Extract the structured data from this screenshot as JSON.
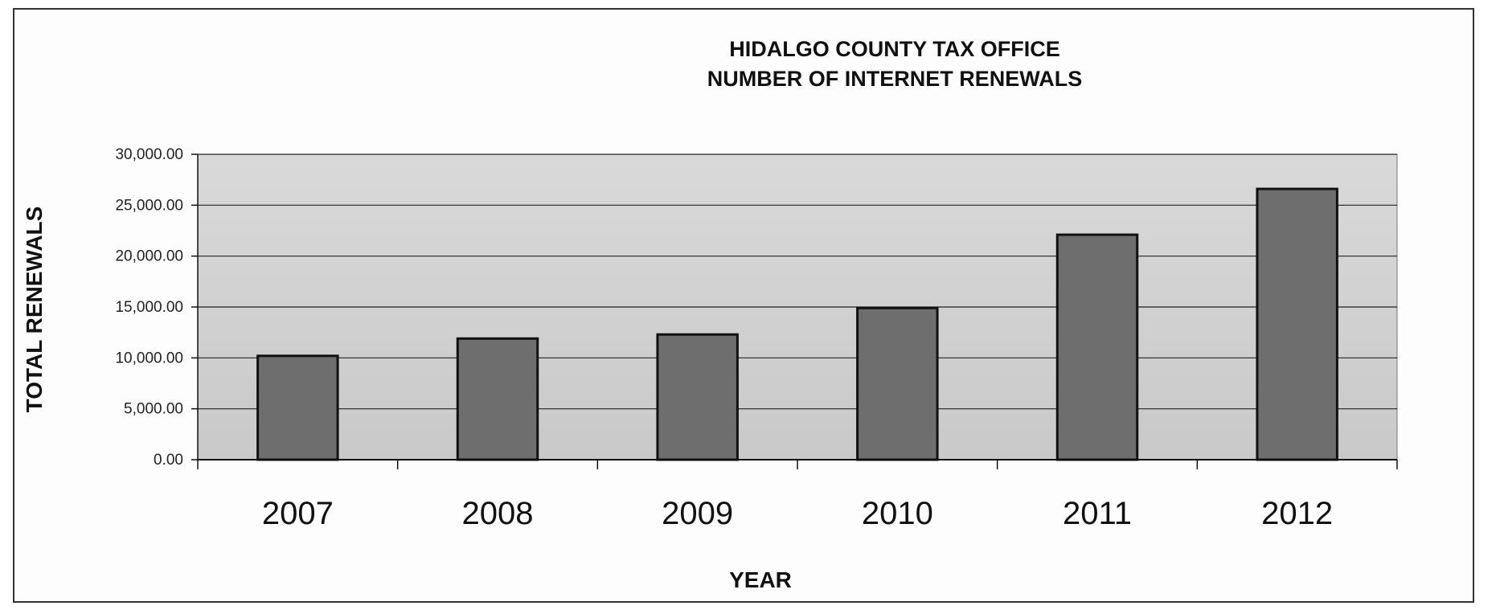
{
  "chart_data": {
    "type": "bar",
    "title": "HIDALGO COUNTY TAX OFFICE",
    "subtitle": "NUMBER OF INTERNET RENEWALS",
    "xlabel": "YEAR",
    "ylabel": "TOTAL RENEWALS",
    "categories": [
      "2007",
      "2008",
      "2009",
      "2010",
      "2011",
      "2012"
    ],
    "values": [
      10200,
      11900,
      12300,
      14900,
      22100,
      26600
    ],
    "ylim": [
      0,
      30000
    ],
    "yticks": [
      "0.00",
      "5,000.00",
      "10,000.00",
      "15,000.00",
      "20,000.00",
      "25,000.00",
      "30,000.00"
    ],
    "ytick_values": [
      0,
      5000,
      10000,
      15000,
      20000,
      25000,
      30000
    ],
    "grid": true,
    "colors": {
      "bar": "#6e6e6e",
      "plot_bg": "#cfcfcf",
      "bar_edge": "#111111"
    }
  }
}
